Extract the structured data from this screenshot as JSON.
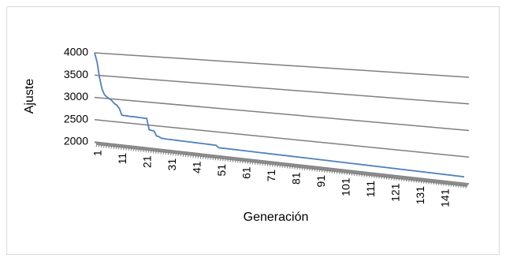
{
  "chart_data": {
    "type": "line",
    "x_label": "Generación",
    "y_label": "Ajuste",
    "ylim": [
      2000,
      4000
    ],
    "yticks": [
      2000,
      2500,
      3000,
      3500,
      4000
    ],
    "grid": true,
    "categories": [
      "1",
      null,
      null,
      null,
      null,
      null,
      null,
      null,
      null,
      null,
      "11",
      null,
      null,
      null,
      null,
      null,
      null,
      null,
      null,
      null,
      "21",
      null,
      null,
      null,
      null,
      null,
      null,
      null,
      null,
      null,
      "31",
      null,
      null,
      null,
      null,
      null,
      null,
      null,
      null,
      null,
      "41",
      null,
      null,
      null,
      null,
      null,
      null,
      null,
      null,
      null,
      "51",
      null,
      null,
      null,
      null,
      null,
      null,
      null,
      null,
      null,
      "61",
      null,
      null,
      null,
      null,
      null,
      null,
      null,
      null,
      null,
      "71",
      null,
      null,
      null,
      null,
      null,
      null,
      null,
      null,
      null,
      "81",
      null,
      null,
      null,
      null,
      null,
      null,
      null,
      null,
      null,
      "91",
      null,
      null,
      null,
      null,
      null,
      null,
      null,
      null,
      null,
      "101",
      null,
      null,
      null,
      null,
      null,
      null,
      null,
      null,
      null,
      "111",
      null,
      null,
      null,
      null,
      null,
      null,
      null,
      null,
      null,
      "121",
      null,
      null,
      null,
      null,
      null,
      null,
      null,
      null,
      null,
      "131",
      null,
      null,
      null,
      null,
      null,
      null,
      null,
      null,
      null,
      "141",
      null,
      null,
      null,
      null,
      null,
      null,
      null,
      null,
      null
    ],
    "series": [
      {
        "name": "Ajuste",
        "color": "#4f81bd",
        "values": [
          4000,
          3800,
          3450,
          3200,
          3080,
          3030,
          3000,
          2960,
          2900,
          2870,
          2800,
          2660,
          2655,
          2655,
          2650,
          2650,
          2650,
          2648,
          2645,
          2645,
          2640,
          2640,
          2400,
          2390,
          2380,
          2280,
          2270,
          2240,
          2240,
          2235,
          2235,
          2234,
          2233,
          2232,
          2231,
          2230,
          2229,
          2228,
          2227,
          2226,
          2225,
          2224,
          2223,
          2222,
          2221,
          2220,
          2219,
          2218,
          2217,
          2216,
          2170,
          2170,
          2169,
          2169,
          2168,
          2168,
          2167,
          2167,
          2166,
          2166,
          2165,
          2165,
          2164,
          2164,
          2163,
          2163,
          2162,
          2162,
          2161,
          2161,
          2160,
          2160,
          2159,
          2159,
          2158,
          2158,
          2157,
          2157,
          2156,
          2156,
          2155,
          2155,
          2154,
          2154,
          2153,
          2153,
          2152,
          2152,
          2151,
          2151,
          2150,
          2150,
          2149,
          2149,
          2148,
          2148,
          2147,
          2147,
          2146,
          2146,
          2145,
          2145,
          2144,
          2144,
          2143,
          2143,
          2142,
          2142,
          2141,
          2141,
          2140,
          2140,
          2139,
          2139,
          2138,
          2138,
          2137,
          2137,
          2136,
          2136,
          2135,
          2135,
          2134,
          2134,
          2133,
          2133,
          2132,
          2132,
          2131,
          2131,
          2130,
          2130,
          2129,
          2129,
          2128,
          2128,
          2127,
          2127,
          2126,
          2126,
          2125,
          2125,
          2124,
          2124,
          2123,
          2123,
          2122,
          2122,
          2121,
          2121
        ]
      }
    ]
  }
}
